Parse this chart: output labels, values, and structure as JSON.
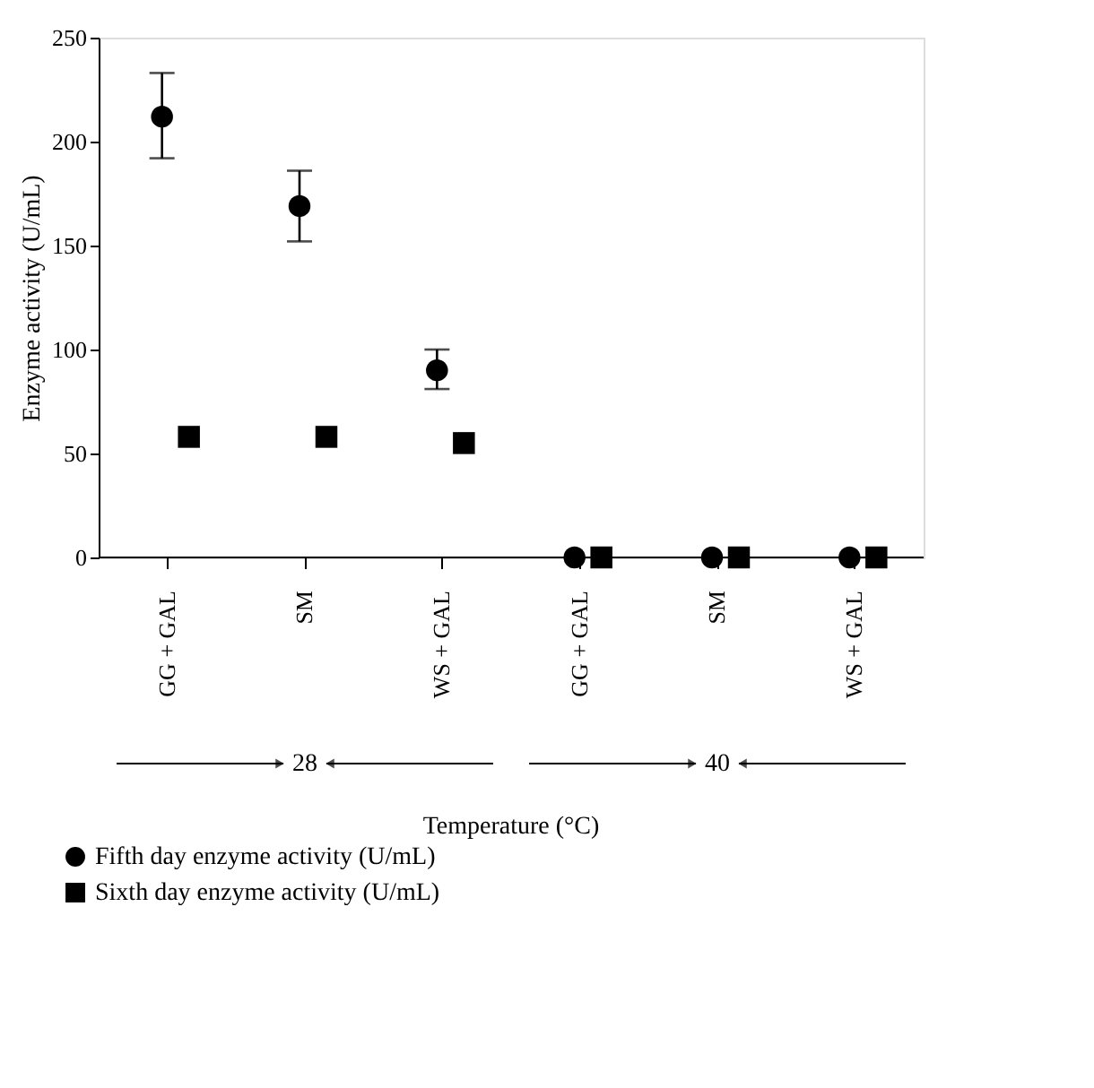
{
  "chart_data": {
    "type": "scatter",
    "xlabel": "Temperature (°C)",
    "ylabel": "Enzyme activity (U/mL)",
    "categories": [
      "GG + GAL",
      "SM",
      "WS + GAL",
      "GG + GAL",
      "SM",
      "WS + GAL"
    ],
    "series": [
      {
        "name": "Fifth day enzyme activity (U/mL)",
        "color": "#000000",
        "marker": "circle",
        "values": [
          212,
          169,
          90,
          0,
          0,
          0
        ],
        "errors": [
          [
            192,
            233
          ],
          [
            152,
            186
          ],
          [
            81,
            100
          ],
          null,
          null,
          null
        ]
      },
      {
        "name": "Sixth day enzyme activity (U/mL)",
        "color": "#000000",
        "marker": "square",
        "values": [
          58,
          58,
          55,
          0,
          0,
          0
        ]
      }
    ],
    "annotations": [
      "28",
      "40"
    ],
    "ylim": [
      0,
      250
    ],
    "yticks": [
      0,
      50,
      100,
      150,
      200,
      250
    ],
    "grid": false,
    "legend": "bottom left"
  }
}
